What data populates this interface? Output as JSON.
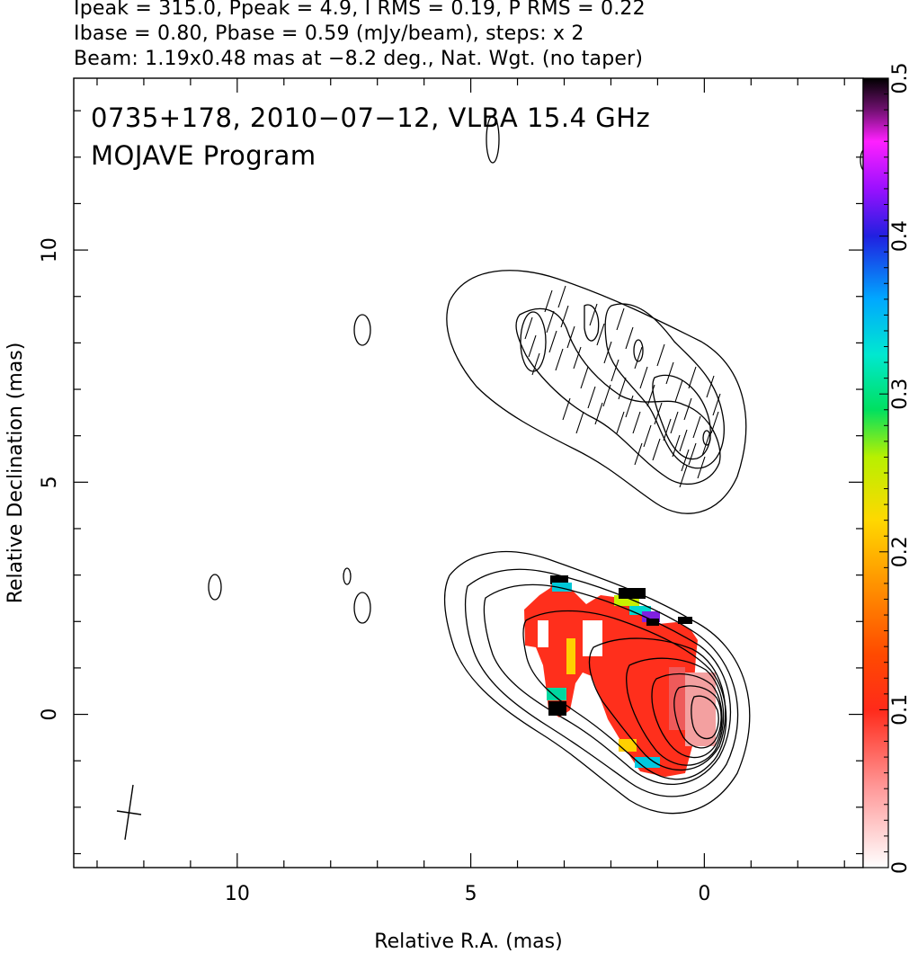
{
  "header": {
    "line1": "Ipeak = 315.0, Ppeak = 4.9, I RMS = 0.19, P RMS = 0.22",
    "line2": "Ibase = 0.80, Pbase = 0.59 (mJy/beam), steps: x 2",
    "line3": "Beam: 1.19x0.48 mas at −8.2 deg., Nat. Wgt. (no taper)"
  },
  "chart_data": {
    "type": "heatmap",
    "title": "0735+178, 2010−07−12, VLBA 15.4 GHz",
    "subtitle": "MOJAVE Program",
    "xlabel": "Relative R.A. (mas)",
    "ylabel": "Relative Declination (mas)",
    "xlim": [
      13.5,
      -3.4
    ],
    "ylim": [
      -3.3,
      13.7
    ],
    "x_ticks": [
      "10",
      "5",
      "0"
    ],
    "y_ticks": [
      "0",
      "5",
      "10"
    ],
    "x_tick_values": [
      10,
      5,
      0
    ],
    "y_tick_values": [
      0,
      5,
      10
    ],
    "colorbar": {
      "range": [
        0,
        0.5
      ],
      "tick_labels": [
        "0",
        "0.1",
        "0.2",
        "0.3",
        "0.4",
        "0.5"
      ],
      "tick_values": [
        0,
        0.1,
        0.2,
        0.3,
        0.4,
        0.5
      ]
    },
    "total_intensity_contours": {
      "center": [
        0,
        0
      ],
      "levels_mJy_per_beam": [
        0.8,
        1.6,
        3.2,
        6.4,
        12.8,
        25.6,
        51.2,
        102.4,
        204.8
      ]
    },
    "polarized_intensity_contours": {
      "center": [
        0,
        6
      ],
      "levels_mJy_per_beam": [
        0.59,
        1.18,
        2.36,
        4.72
      ]
    },
    "beam": {
      "major_mas": 1.19,
      "minor_mas": 0.48,
      "pa_deg": -8.2
    }
  }
}
